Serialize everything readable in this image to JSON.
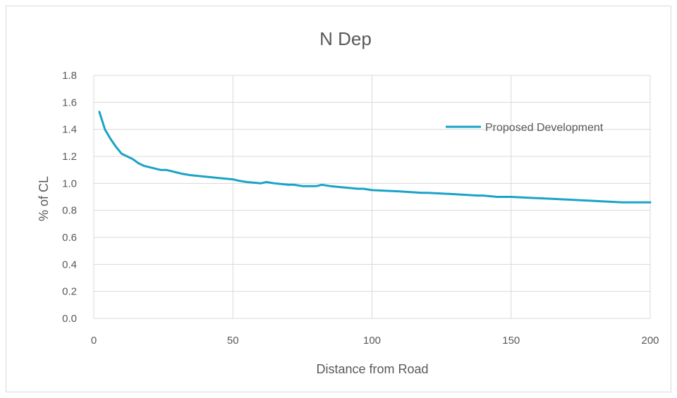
{
  "chart_data": {
    "type": "line",
    "title": "N Dep",
    "xlabel": "Distance from Road",
    "ylabel": "% of CL",
    "xlim": [
      0,
      200
    ],
    "ylim": [
      0,
      1.8
    ],
    "x_ticks": [
      "0",
      "50",
      "100",
      "150",
      "200"
    ],
    "y_ticks": [
      "0.0",
      "0.2",
      "0.4",
      "0.6",
      "0.8",
      "1.0",
      "1.2",
      "1.4",
      "1.6",
      "1.8"
    ],
    "grid": true,
    "legend_position": "right",
    "colors": {
      "series": "#1aa3c7",
      "grid": "#d9d9d9",
      "text": "#595959"
    },
    "series": [
      {
        "name": "Proposed Development",
        "x": [
          2,
          4,
          6,
          8,
          10,
          12,
          14,
          16,
          18,
          20,
          22,
          24,
          26,
          28,
          30,
          32,
          35,
          40,
          45,
          50,
          52,
          55,
          60,
          62,
          65,
          70,
          72,
          75,
          80,
          82,
          85,
          90,
          95,
          97,
          100,
          110,
          118,
          120,
          130,
          138,
          140,
          145,
          150,
          160,
          170,
          180,
          190,
          195,
          200
        ],
        "y": [
          1.53,
          1.4,
          1.33,
          1.27,
          1.22,
          1.2,
          1.18,
          1.15,
          1.13,
          1.12,
          1.11,
          1.1,
          1.1,
          1.09,
          1.08,
          1.07,
          1.06,
          1.05,
          1.04,
          1.03,
          1.02,
          1.01,
          1.0,
          1.01,
          1.0,
          0.99,
          0.99,
          0.98,
          0.98,
          0.99,
          0.98,
          0.97,
          0.96,
          0.96,
          0.95,
          0.94,
          0.93,
          0.93,
          0.92,
          0.91,
          0.91,
          0.9,
          0.9,
          0.89,
          0.88,
          0.87,
          0.86,
          0.86,
          0.86
        ]
      }
    ]
  }
}
